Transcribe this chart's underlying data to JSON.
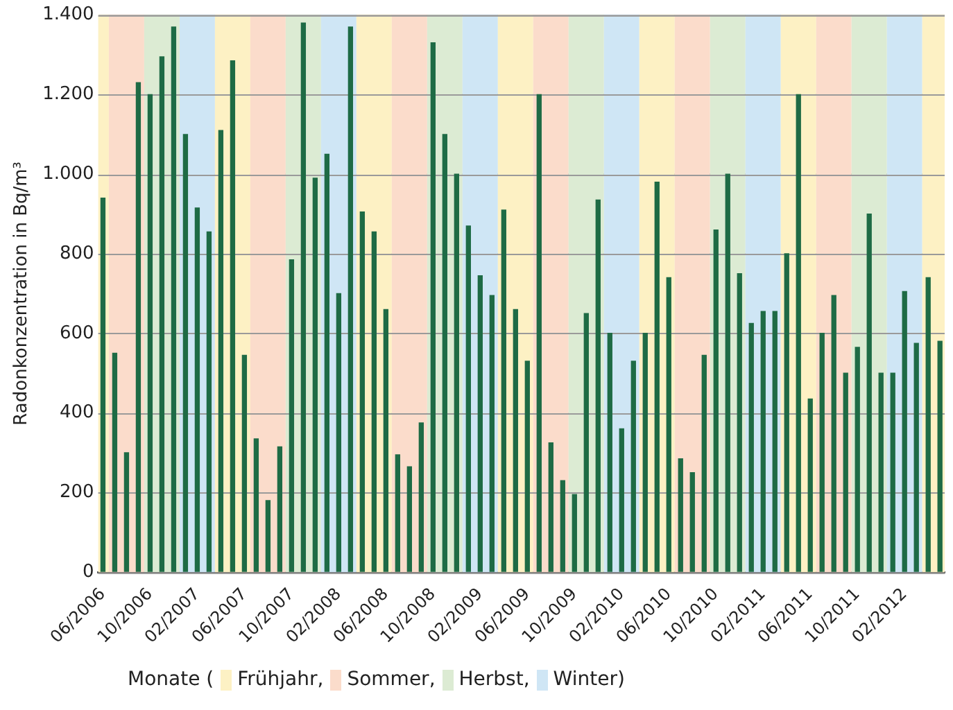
{
  "chart_data": {
    "type": "bar",
    "ylabel": "Radonkonzentration in Bq/m³",
    "legend_title": "Monate (",
    "legend": "bottom",
    "grid": "y",
    "color": "#1e6b45",
    "x": [
      "2006-06",
      "2006-07",
      "2006-08",
      "2006-09",
      "2006-10",
      "2006-11",
      "2006-12",
      "2007-01",
      "2007-02",
      "2007-03",
      "2007-04",
      "2007-05",
      "2007-06",
      "2007-07",
      "2007-08",
      "2007-09",
      "2007-10",
      "2007-11",
      "2007-12",
      "2008-01",
      "2008-02",
      "2008-03",
      "2008-04",
      "2008-05",
      "2008-06",
      "2008-07",
      "2008-08",
      "2008-09",
      "2008-10",
      "2008-11",
      "2008-12",
      "2009-01",
      "2009-02",
      "2009-03",
      "2009-04",
      "2009-05",
      "2009-06",
      "2009-07",
      "2009-08",
      "2009-09",
      "2009-10",
      "2009-11",
      "2009-12",
      "2010-01",
      "2010-02",
      "2010-03",
      "2010-04",
      "2010-05",
      "2010-06",
      "2010-07",
      "2010-08",
      "2010-09",
      "2010-10",
      "2010-11",
      "2010-12",
      "2011-01",
      "2011-02",
      "2011-03",
      "2011-04",
      "2011-05",
      "2011-06",
      "2011-07",
      "2011-08",
      "2011-09",
      "2011-10",
      "2011-11",
      "2011-12",
      "2012-01",
      "2012-02",
      "2012-03",
      "2012-04",
      "2012-05"
    ],
    "values": [
      940,
      550,
      300,
      1230,
      1200,
      1295,
      1370,
      1100,
      915,
      855,
      1110,
      1285,
      545,
      335,
      180,
      315,
      785,
      1380,
      990,
      1050,
      700,
      1370,
      905,
      855,
      660,
      295,
      265,
      375,
      1330,
      1100,
      1000,
      870,
      745,
      695,
      910,
      660,
      530,
      1200,
      325,
      230,
      195,
      650,
      935,
      600,
      360,
      530,
      600,
      980,
      740,
      285,
      250,
      545,
      860,
      1000,
      750,
      625,
      655,
      655,
      800,
      1200,
      435,
      600,
      695,
      500,
      565,
      900,
      500,
      500,
      705,
      575,
      740,
      580
    ],
    "xlim": [
      "2006-05-19",
      "2012-05-13"
    ],
    "xticks": [
      {
        "value": "2006-06",
        "label": "06/2006"
      },
      {
        "value": "2006-10",
        "label": "10/2006"
      },
      {
        "value": "2007-02",
        "label": "02/2007"
      },
      {
        "value": "2007-06",
        "label": "06/2007"
      },
      {
        "value": "2007-10",
        "label": "10/2007"
      },
      {
        "value": "2008-02",
        "label": "02/2008"
      },
      {
        "value": "2008-06",
        "label": "06/2008"
      },
      {
        "value": "2008-10",
        "label": "10/2008"
      },
      {
        "value": "2009-02",
        "label": "02/2009"
      },
      {
        "value": "2009-06",
        "label": "06/2009"
      },
      {
        "value": "2009-10",
        "label": "10/2009"
      },
      {
        "value": "2010-02",
        "label": "02/2010"
      },
      {
        "value": "2010-06",
        "label": "06/2010"
      },
      {
        "value": "2010-10",
        "label": "10/2010"
      },
      {
        "value": "2011-02",
        "label": "02/2011"
      },
      {
        "value": "2011-06",
        "label": "06/2011"
      },
      {
        "value": "2011-10",
        "label": "10/2011"
      },
      {
        "value": "2012-02",
        "label": "02/2012"
      }
    ],
    "ylim": [
      0,
      1400
    ],
    "yticks": [
      0,
      200,
      400,
      600,
      800,
      {
        "value": 1000,
        "label": "1.000"
      },
      {
        "value": 1200,
        "label": "1.200"
      },
      {
        "value": 1400,
        "label": "1.400"
      }
    ],
    "bands": [
      {
        "axis": "x",
        "from": "2006-05-19",
        "to": "2006-06-16",
        "label": "Frühjahr,",
        "color": "#fdf1c4"
      },
      {
        "axis": "x",
        "from": "2006-06-16",
        "to": "2006-09-16",
        "label": "Sommer,",
        "color": "#fbdccb"
      },
      {
        "axis": "x",
        "from": "2006-09-16",
        "to": "2006-12-16",
        "label": "Herbst,",
        "color": "#dcebd3"
      },
      {
        "axis": "x",
        "from": "2006-12-16",
        "to": "2007-03-16",
        "label": "Winter)",
        "color": "#cfe6f5"
      },
      {
        "axis": "x",
        "from": "2007-03-16",
        "to": "2007-06-16",
        "color": "#fdf1c4"
      },
      {
        "axis": "x",
        "from": "2007-06-16",
        "to": "2007-09-16",
        "color": "#fbdccb"
      },
      {
        "axis": "x",
        "from": "2007-09-16",
        "to": "2007-12-16",
        "color": "#dcebd3"
      },
      {
        "axis": "x",
        "from": "2007-12-16",
        "to": "2008-03-16",
        "color": "#cfe6f5"
      },
      {
        "axis": "x",
        "from": "2008-03-16",
        "to": "2008-06-16",
        "color": "#fdf1c4"
      },
      {
        "axis": "x",
        "from": "2008-06-16",
        "to": "2008-09-16",
        "color": "#fbdccb"
      },
      {
        "axis": "x",
        "from": "2008-09-16",
        "to": "2008-12-16",
        "color": "#dcebd3"
      },
      {
        "axis": "x",
        "from": "2008-12-16",
        "to": "2009-03-16",
        "color": "#cfe6f5"
      },
      {
        "axis": "x",
        "from": "2009-03-16",
        "to": "2009-06-16",
        "color": "#fdf1c4"
      },
      {
        "axis": "x",
        "from": "2009-06-16",
        "to": "2009-09-16",
        "color": "#fbdccb"
      },
      {
        "axis": "x",
        "from": "2009-09-16",
        "to": "2009-12-16",
        "color": "#dcebd3"
      },
      {
        "axis": "x",
        "from": "2009-12-16",
        "to": "2010-03-16",
        "color": "#cfe6f5"
      },
      {
        "axis": "x",
        "from": "2010-03-16",
        "to": "2010-06-16",
        "color": "#fdf1c4"
      },
      {
        "axis": "x",
        "from": "2010-06-16",
        "to": "2010-09-16",
        "color": "#fbdccb"
      },
      {
        "axis": "x",
        "from": "2010-09-16",
        "to": "2010-12-16",
        "color": "#dcebd3"
      },
      {
        "axis": "x",
        "from": "2010-12-16",
        "to": "2011-03-16",
        "color": "#cfe6f5"
      },
      {
        "axis": "x",
        "from": "2011-03-16",
        "to": "2011-06-16",
        "color": "#fdf1c4"
      },
      {
        "axis": "x",
        "from": "2011-06-16",
        "to": "2011-09-16",
        "color": "#fbdccb"
      },
      {
        "axis": "x",
        "from": "2011-09-16",
        "to": "2011-12-16",
        "color": "#dcebd3"
      },
      {
        "axis": "x",
        "from": "2011-12-16",
        "to": "2012-03-16",
        "color": "#cfe6f5"
      },
      {
        "axis": "x",
        "from": "2012-03-16",
        "to": "2012-05-13",
        "color": "#fdf1c4"
      }
    ]
  }
}
